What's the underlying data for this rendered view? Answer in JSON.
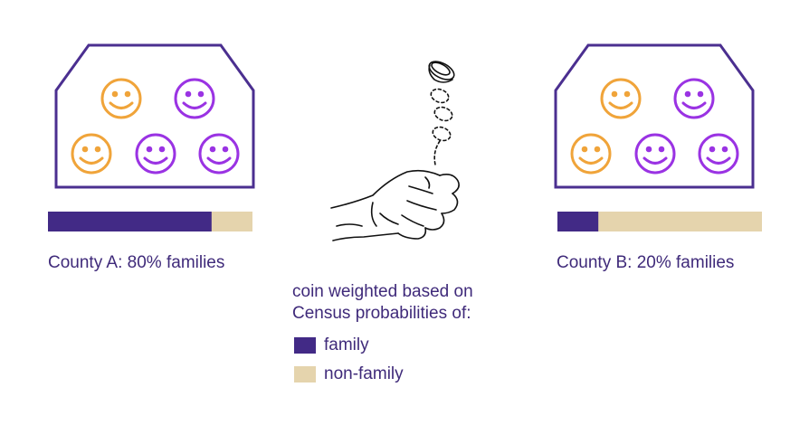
{
  "colors": {
    "family": "#422a86",
    "non_family": "#e5d4ad",
    "outline": "#4b2f90",
    "orange_face": "#f0a43a",
    "purple_face": "#9a33e3",
    "text": "#3f2a7a"
  },
  "county_a": {
    "label": "County A: 80% families",
    "family_share": 0.8,
    "faces": [
      "orange",
      "purple",
      "orange",
      "purple",
      "purple"
    ]
  },
  "county_b": {
    "label": "County B: 20% families",
    "family_share": 0.2,
    "faces": [
      "orange",
      "purple",
      "orange",
      "purple",
      "purple"
    ]
  },
  "coin": {
    "caption_line1": "coin weighted based on",
    "caption_line2": "Census probabilities of:",
    "icon": "hand-flipping-coin-icon"
  },
  "legend": {
    "family_label": "family",
    "non_family_label": "non-family"
  }
}
